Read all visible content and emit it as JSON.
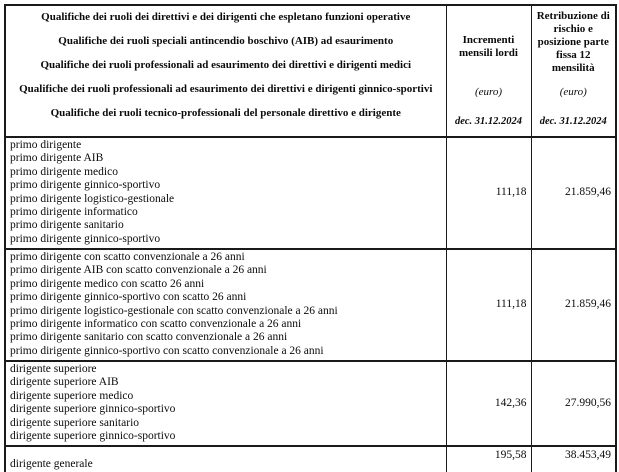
{
  "table": {
    "header": {
      "qualifiche_lines": [
        "Qualifiche dei ruoli dei direttivi e dei dirigenti che espletano funzioni operative",
        "Qualifiche dei ruoli speciali antincendio boschivo (AIB) ad esaurimento",
        "Qualifiche dei ruoli professionali ad esaurimento dei direttivi e dirigenti medici",
        "Qualifiche dei ruoli professionali ad esaurimento dei direttivi e dirigenti ginnico-sportivi",
        "Qualifiche dei ruoli tecnico-professionali del personale direttivo e dirigente"
      ],
      "increments_col": {
        "title": "Incrementi mensili lordi",
        "unit": "(euro)",
        "date": "dec. 31.12.2024"
      },
      "retribution_col": {
        "title": "Retribuzione di rischio e posizione parte fissa 12 mensilità",
        "unit": "(euro)",
        "date": "dec. 31.12.2024"
      }
    },
    "groups": [
      {
        "rows": [
          "primo dirigente",
          "primo dirigente AIB",
          "primo dirigente medico",
          "primo dirigente ginnico-sportivo",
          "primo dirigente logistico-gestionale",
          "primo dirigente informatico",
          "primo dirigente sanitario",
          "primo dirigente ginnico-sportivo"
        ],
        "incremento": "111,18",
        "retribuzione": "21.859,46"
      },
      {
        "rows": [
          "primo dirigente con scatto convenzionale a 26 anni",
          "primo dirigente AIB con scatto convenzionale a 26 anni",
          "primo dirigente medico con scatto 26 anni",
          "primo dirigente ginnico-sportivo con scatto 26 anni",
          "primo dirigente logistico-gestionale con scatto convenzionale a 26 anni",
          "primo dirigente informatico con scatto convenzionale a 26 anni",
          "primo dirigente sanitario con scatto convenzionale a 26 anni",
          "primo dirigente ginnico-sportivo con scatto convenzionale a 26 anni"
        ],
        "incremento": "111,18",
        "retribuzione": "21.859,46"
      },
      {
        "rows": [
          "dirigente superiore",
          "dirigente superiore AIB",
          "dirigente superiore medico",
          "dirigente superiore ginnico-sportivo",
          "dirigente superiore sanitario",
          "dirigente superiore ginnico-sportivo"
        ],
        "incremento": "142,36",
        "retribuzione": "27.990,56"
      },
      {
        "rows": [
          "dirigente generale"
        ],
        "incremento": "195,58",
        "retribuzione": "38.453,49"
      }
    ]
  },
  "colors": {
    "border": "#1a1a1a",
    "text": "#0b0b0b",
    "background": "#ffffff"
  }
}
